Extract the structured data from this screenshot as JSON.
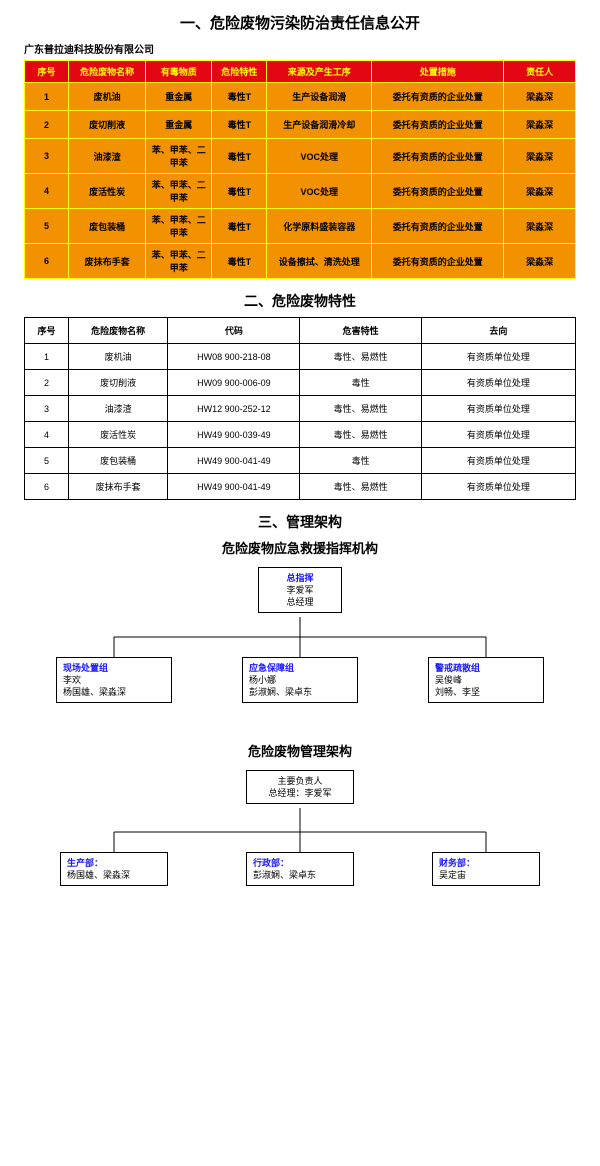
{
  "company": "广东普拉迪科技股份有限公司",
  "section1": {
    "title": "一、危险废物污染防治责任信息公开",
    "colors": {
      "header_bg": "#e30613",
      "header_fg": "#ffff00",
      "body_bg": "#f39200",
      "body_fg": "#000000",
      "border": "#ffff00"
    },
    "columns": [
      "序号",
      "危险废物名称",
      "有毒物质",
      "危险特性",
      "来源及产生工序",
      "处置措施",
      "责任人"
    ],
    "colwidths": [
      "8%",
      "14%",
      "12%",
      "10%",
      "19%",
      "24%",
      "13%"
    ],
    "rows": [
      [
        "1",
        "废机油",
        "重金属",
        "毒性T",
        "生产设备润滑",
        "委托有资质的企业处置",
        "梁淼深"
      ],
      [
        "2",
        "废切削液",
        "重金属",
        "毒性T",
        "生产设备润滑冷却",
        "委托有资质的企业处置",
        "梁淼深"
      ],
      [
        "3",
        "油漆渣",
        "苯、甲苯、二甲苯",
        "毒性T",
        "VOC处理",
        "委托有资质的企业处置",
        "梁淼深"
      ],
      [
        "4",
        "废活性炭",
        "苯、甲苯、二甲苯",
        "毒性T",
        "VOC处理",
        "委托有资质的企业处置",
        "梁淼深"
      ],
      [
        "5",
        "废包装桶",
        "苯、甲苯、二甲苯",
        "毒性T",
        "化学原料盛装容器",
        "委托有资质的企业处置",
        "梁淼深"
      ],
      [
        "6",
        "废抹布手套",
        "苯、甲苯、二甲苯",
        "毒性T",
        "设备擦拭、清洗处理",
        "委托有资质的企业处置",
        "梁淼深"
      ]
    ]
  },
  "section2": {
    "title": "二、危险废物特性",
    "columns": [
      "序号",
      "危险废物名称",
      "代码",
      "危害特性",
      "去向"
    ],
    "colwidths": [
      "8%",
      "18%",
      "24%",
      "22%",
      "28%"
    ],
    "rows": [
      [
        "1",
        "废机油",
        "HW08 900-218-08",
        "毒性、易燃性",
        "有资质单位处理"
      ],
      [
        "2",
        "废切削液",
        "HW09 900-006-09",
        "毒性",
        "有资质单位处理"
      ],
      [
        "3",
        "油漆渣",
        "HW12 900-252-12",
        "毒性、易燃性",
        "有资质单位处理"
      ],
      [
        "4",
        "废活性炭",
        "HW49 900-039-49",
        "毒性、易燃性",
        "有资质单位处理"
      ],
      [
        "5",
        "废包装桶",
        "HW49 900-041-49",
        "毒性",
        "有资质单位处理"
      ],
      [
        "6",
        "废抹布手套",
        "HW49 900-041-49",
        "毒性、易燃性",
        "有资质单位处理"
      ]
    ]
  },
  "section3": {
    "title": "三、管理架构",
    "org1": {
      "title": "危险废物应急救援指挥机构",
      "top": {
        "role": "总指挥",
        "lines": [
          "李爱军",
          "总经理"
        ]
      },
      "children": [
        {
          "role": "现场处置组",
          "lines": [
            "李欢",
            "杨国雄、梁淼深"
          ]
        },
        {
          "role": "应急保障组",
          "lines": [
            "杨小娜",
            "彭淑娴、梁卓东"
          ]
        },
        {
          "role": "警戒疏散组",
          "lines": [
            "吴俊峰",
            "刘畅、李坚"
          ]
        }
      ]
    },
    "org2": {
      "title": "危险废物管理架构",
      "top": {
        "lines": [
          "主要负责人",
          "总经理：李爱军"
        ]
      },
      "children": [
        {
          "role": "生产部：",
          "lines": [
            "杨国雄、梁淼深"
          ]
        },
        {
          "role": "行政部：",
          "lines": [
            "彭淑娴、梁卓东"
          ]
        },
        {
          "role": "财务部：",
          "lines": [
            "吴定宙"
          ]
        }
      ]
    }
  }
}
